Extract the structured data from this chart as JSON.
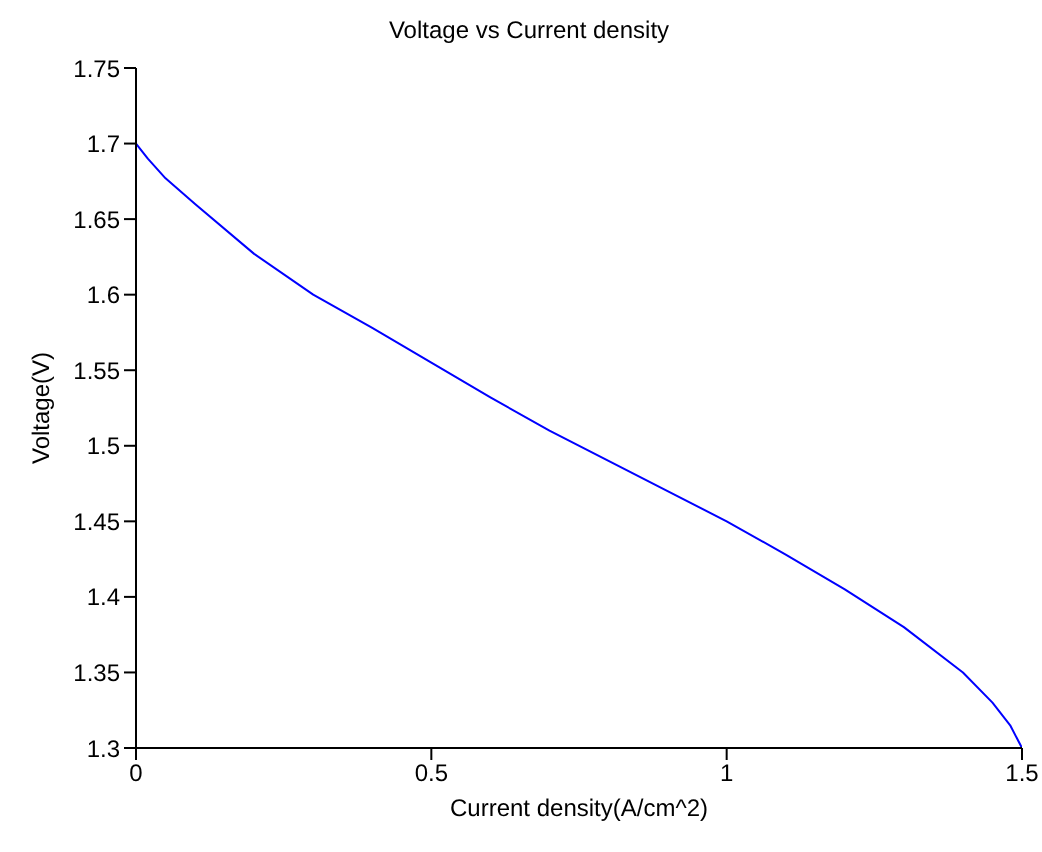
{
  "chart_data": {
    "type": "line",
    "title": "Voltage vs Current density",
    "xlabel": "Current density(A/cm^2)",
    "ylabel": "Voltage(V)",
    "x": [
      0,
      0.02,
      0.05,
      0.1,
      0.2,
      0.3,
      0.4,
      0.5,
      0.6,
      0.7,
      0.8,
      0.9,
      1.0,
      1.1,
      1.2,
      1.3,
      1.4,
      1.45,
      1.48,
      1.5
    ],
    "series": [
      {
        "color": "#0000ff",
        "values": [
          1.7,
          1.69,
          1.677,
          1.66,
          1.627,
          1.6,
          1.578,
          1.555,
          1.532,
          1.51,
          1.49,
          1.47,
          1.45,
          1.428,
          1.405,
          1.38,
          1.35,
          1.33,
          1.315,
          1.3
        ]
      }
    ],
    "xlim": [
      0,
      1.5
    ],
    "xticks": [
      0,
      0.5,
      1,
      1.5
    ],
    "ylim": [
      1.3,
      1.75
    ],
    "yticks": [
      1.3,
      1.35,
      1.4,
      1.45,
      1.5,
      1.55,
      1.6,
      1.65,
      1.7,
      1.75
    ],
    "grid": false,
    "legend": false,
    "marker": "none",
    "line_style": "solid"
  }
}
